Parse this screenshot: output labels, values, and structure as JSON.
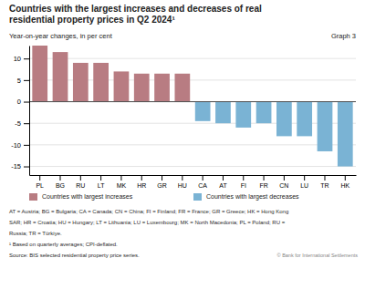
{
  "chart_data": {
    "type": "bar",
    "title": "Countries with the largest increases and decreases of real\nresidential property prices in Q2 2024¹",
    "subtitle": "Year-on-year changes, in per cent",
    "annotations": [
      "Graph 3"
    ],
    "footnotes": [
      "AT = Austria; BG = Bulgaria; CA = Canada; CN = China; FI = Finland; FR = France; GR = Greece; HK = Hong Kong",
      "SAR; HR = Croatia; HU = Hungary; LT = Lithuania; LU = Luxembourg; MK = North Macedonia; PL = Poland; RU =",
      "Russia; TR = Türkiye.",
      "¹ Based on quarterly averages; CPI-deflated.",
      "Source: BIS selected residential property price series.",
      "© Bank for International Settlements"
    ],
    "categories": [
      "PL",
      "BG",
      "RU",
      "LT",
      "MK",
      "HR",
      "GR",
      "HU",
      "CA",
      "AT",
      "FI",
      "FR",
      "CN",
      "LU",
      "TR",
      "HK"
    ],
    "series": [
      {
        "name": "Countries with largest increases",
        "color": "#b87c82",
        "values": [
          13.0,
          11.5,
          9.0,
          9.0,
          7.0,
          6.5,
          6.5,
          6.5,
          null,
          null,
          null,
          null,
          null,
          null,
          null,
          null
        ]
      },
      {
        "name": "Countries with largest decreases",
        "color": "#7ab3d4",
        "values": [
          null,
          null,
          null,
          null,
          null,
          null,
          null,
          null,
          -4.5,
          -5.0,
          -6.0,
          -5.0,
          -8.0,
          -8.0,
          -11.5,
          -15.0
        ]
      }
    ],
    "ylim": [
      -17,
      13
    ],
    "yticks": [
      -15,
      -10,
      -5,
      0,
      5,
      10
    ],
    "grid": true,
    "legend": "bottom"
  }
}
